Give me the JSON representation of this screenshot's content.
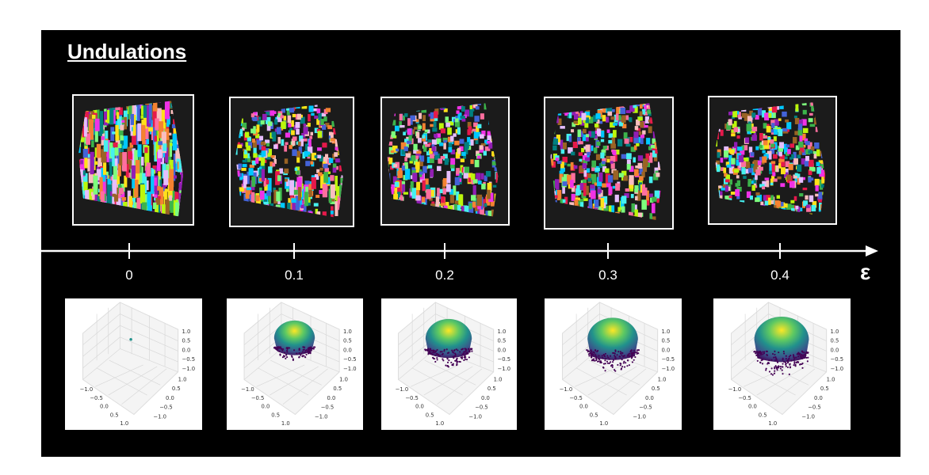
{
  "title": "Undulations",
  "axis": {
    "symbol": "ε",
    "values": [
      "0",
      "0.1",
      "0.2",
      "0.3",
      "0.4"
    ]
  },
  "plots": {
    "z_ticks": [
      "1.0",
      "0.5",
      "0.0",
      "−0.5",
      "−1.0"
    ],
    "x_ticks": [
      "−1.0",
      "−0.5",
      "0.0",
      "0.5",
      "1.0"
    ],
    "y_ticks": [
      "1.0",
      "0.5",
      "0.0",
      "−0.5",
      "−1.0"
    ],
    "cap_extent": [
      0,
      0.35,
      0.55,
      0.7,
      0.85
    ]
  },
  "colors": {
    "background": "#000000",
    "axis": "#ffffff",
    "viridis_low": "#440154",
    "viridis_mid": "#21918c",
    "viridis_high": "#fde725"
  }
}
